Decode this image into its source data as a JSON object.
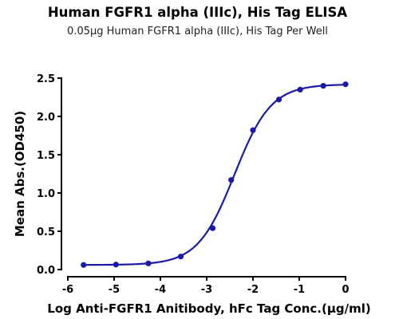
{
  "title": "Human FGFR1 alpha (IIIc), His Tag ELISA",
  "subtitle": "0.05μg Human FGFR1 alpha (IIIc), His Tag Per Well",
  "chart_data": {
    "type": "line",
    "title": "Human FGFR1 alpha (IIIc), His Tag ELISA",
    "subtitle": "0.05μg Human FGFR1 alpha (IIIc), His Tag Per Well",
    "xlabel": "Log Anti-FGFR1 Anitibody, hFc Tag Conc.(μg/ml)",
    "ylabel": "Mean Abs.(OD450)",
    "xlim": [
      -6,
      0
    ],
    "ylim": [
      0,
      2.5
    ],
    "xticks": [
      "-6",
      "-5",
      "-4",
      "-3",
      "-2",
      "-1",
      "0"
    ],
    "yticks": [
      "0.0",
      "0.5",
      "1.0",
      "1.5",
      "2.0",
      "2.5"
    ],
    "grid": false,
    "legend": "none",
    "color": "#1a1aa6",
    "series": [
      {
        "x": [
          -5.66,
          -4.96,
          -4.26,
          -3.56,
          -2.87,
          -2.47,
          -2.0,
          -1.44,
          -0.98,
          -0.48,
          0.0
        ],
        "y": [
          0.06,
          0.065,
          0.08,
          0.17,
          0.54,
          1.17,
          1.82,
          2.22,
          2.35,
          2.4,
          2.42
        ]
      }
    ],
    "fit": {
      "bottom": 0.06,
      "top": 2.42,
      "log_ec50": -2.4,
      "hill_slope": 1.1
    }
  }
}
